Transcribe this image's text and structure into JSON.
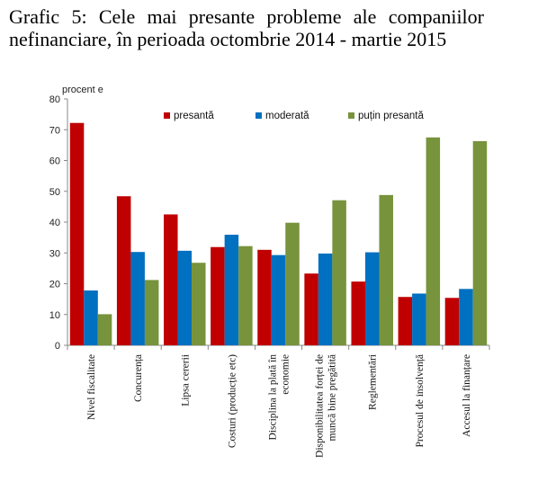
{
  "title": "Grafic 5: Cele mai presante probleme ale companiilor nefinanciare, în perioada octombrie 2014 - martie 2015",
  "chart_data": {
    "type": "bar",
    "y_unit_label": "procent e",
    "ylim": [
      0,
      80
    ],
    "yticks": [
      0,
      10,
      20,
      30,
      40,
      50,
      60,
      70,
      80
    ],
    "grid": false,
    "legend_position": "top-right",
    "categories": [
      [
        "Nivel fiscalitate"
      ],
      [
        "Concurența"
      ],
      [
        "Lipsa cererii"
      ],
      [
        "Costuri (producție etc)"
      ],
      [
        "Disciplina la plată în",
        "economie"
      ],
      [
        "Disponibilitatea forței de",
        "muncă bine pregătită"
      ],
      [
        "Reglementări"
      ],
      [
        "Procesul de insolvență"
      ],
      [
        "Accesul la finanțare"
      ]
    ],
    "series": [
      {
        "name": "presantă",
        "color": "#c00000",
        "values": [
          72.2,
          48.4,
          42.5,
          31.9,
          31.0,
          23.3,
          20.7,
          15.7,
          15.4
        ]
      },
      {
        "name": "moderată",
        "color": "#0070c0",
        "values": [
          17.8,
          30.3,
          30.7,
          35.9,
          29.3,
          29.8,
          30.2,
          16.8,
          18.3
        ]
      },
      {
        "name": "puțin presantă",
        "color": "#77933c",
        "values": [
          10.1,
          21.2,
          26.8,
          32.2,
          39.8,
          47.1,
          48.8,
          67.5,
          66.3
        ]
      }
    ]
  }
}
